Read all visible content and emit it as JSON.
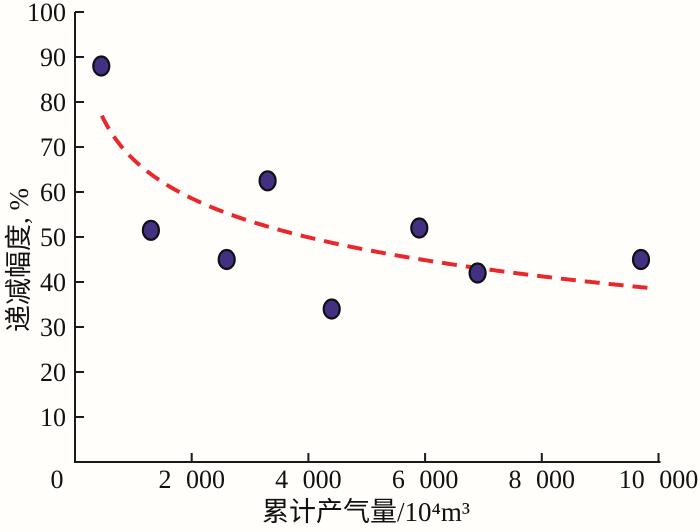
{
  "figure": {
    "background": "#fffefb",
    "axis_color": "#1a1a1a"
  },
  "chart_data": {
    "type": "scatter",
    "title": "",
    "xlabel": "累计产气量/10⁴m³",
    "ylabel": "递减幅度, %",
    "xlim": [
      0,
      10000
    ],
    "ylim": [
      0,
      100
    ],
    "grid": false,
    "legend_position": "none",
    "x_ticks": [
      {
        "value": 0,
        "label": "0"
      },
      {
        "value": 2000,
        "label": "2 000"
      },
      {
        "value": 4000,
        "label": "4 000"
      },
      {
        "value": 6000,
        "label": "6 000"
      },
      {
        "value": 8000,
        "label": "8 000"
      },
      {
        "value": 10000,
        "label": "10 000"
      }
    ],
    "y_ticks": [
      {
        "value": 10,
        "label": "10"
      },
      {
        "value": 20,
        "label": "20"
      },
      {
        "value": 30,
        "label": "30"
      },
      {
        "value": 40,
        "label": "40"
      },
      {
        "value": 50,
        "label": "50"
      },
      {
        "value": 60,
        "label": "60"
      },
      {
        "value": 70,
        "label": "70"
      },
      {
        "value": 80,
        "label": "80"
      },
      {
        "value": 90,
        "label": "90"
      },
      {
        "value": 100,
        "label": "100"
      }
    ],
    "points": [
      {
        "x": 450,
        "y": 88
      },
      {
        "x": 1300,
        "y": 51.5
      },
      {
        "x": 2600,
        "y": 45
      },
      {
        "x": 3300,
        "y": 62.5
      },
      {
        "x": 4400,
        "y": 34
      },
      {
        "x": 5900,
        "y": 52
      },
      {
        "x": 6900,
        "y": 42
      },
      {
        "x": 9700,
        "y": 45
      }
    ],
    "point_color": "#443082",
    "point_outline": "#101010",
    "trendline": {
      "type": "logarithmic",
      "a": 153.6,
      "b": 12.5,
      "x_start": 460,
      "x_end": 9970,
      "style": "dashed",
      "color": "#e9282e"
    }
  }
}
